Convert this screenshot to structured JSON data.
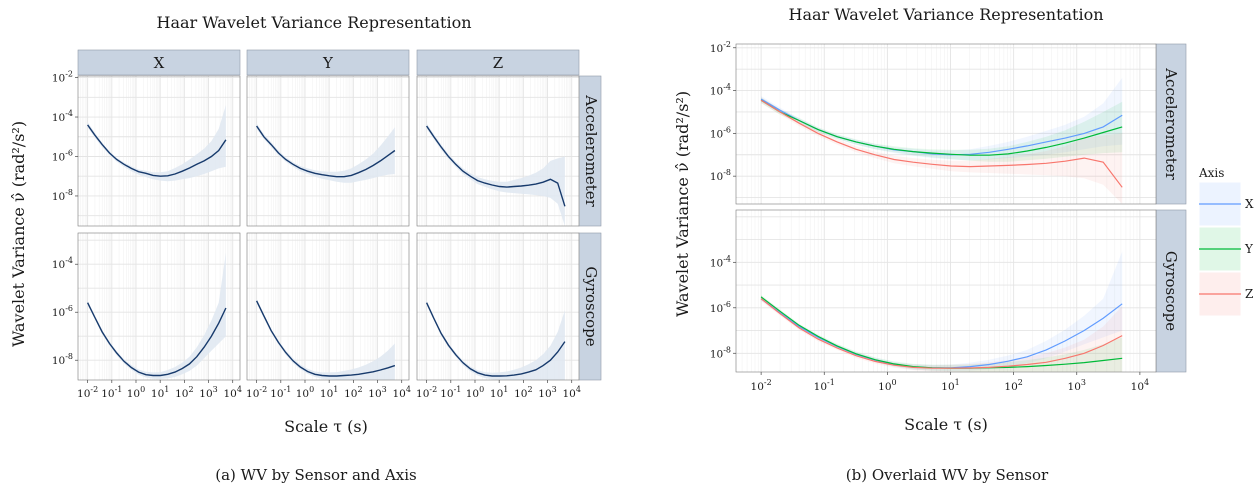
{
  "chart_data": [
    {
      "type": "line",
      "title": "Haar Wavelet Variance Representation",
      "xlabel": "Scale τ (s)",
      "ylabel": "Wavelet Variance ν̂ (rad²/s²)",
      "caption": "(a) WV by Sensor and Axis",
      "x_scale": "log10",
      "y_scale": "log10",
      "xlim": [
        0.004,
        20000
      ],
      "x_tick_exponents": [
        -2,
        -1,
        0,
        1,
        2,
        3,
        4
      ],
      "columns": [
        "X",
        "Y",
        "Z"
      ],
      "rows": [
        "Accelerometer",
        "Gyroscope"
      ],
      "grid": true,
      "scales_tau": [
        0.01,
        0.02,
        0.04,
        0.08,
        0.16,
        0.32,
        0.64,
        1.28,
        2.56,
        5.12,
        10.24,
        20.48,
        40.96,
        81.92,
        163.84,
        327.68,
        655.36,
        1310.72,
        2621.44,
        5242.88
      ],
      "panels": [
        {
          "row": "Accelerometer",
          "ylim": [
            3e-10,
            0.012
          ],
          "y_tick_exponents": [
            -8,
            -6,
            -4,
            -2
          ],
          "series": [
            {
              "axis": "X",
              "values": [
                4e-05,
                1.2e-05,
                4e-06,
                1.5e-06,
                7e-07,
                4e-07,
                2.5e-07,
                1.7e-07,
                1.4e-07,
                1.1e-07,
                1e-07,
                1.05e-07,
                1.3e-07,
                1.8e-07,
                2.6e-07,
                4e-07,
                6e-07,
                1e-06,
                2e-06,
                7e-06
              ],
              "band": [
                [
                  3e-05,
                  5.5e-05
                ],
                [
                  9e-06,
                  1.6e-05
                ],
                [
                  3e-06,
                  5e-06
                ],
                [
                  1.2e-06,
                  1.8e-06
                ],
                [
                  5.5e-07,
                  8.5e-07
                ],
                [
                  3e-07,
                  5e-07
                ],
                [
                  1.8e-07,
                  3.2e-07
                ],
                [
                  1.2e-07,
                  2.2e-07
                ],
                [
                  9e-08,
                  1.9e-07
                ],
                [
                  7e-08,
                  1.6e-07
                ],
                [
                  6e-08,
                  1.6e-07
                ],
                [
                  5.5e-08,
                  1.8e-07
                ],
                [
                  6e-08,
                  2.6e-07
                ],
                [
                  7e-08,
                  4e-07
                ],
                [
                  8e-08,
                  7e-07
                ],
                [
                  1e-07,
                  1.3e-06
                ],
                [
                  1.3e-07,
                  2.5e-06
                ],
                [
                  1.8e-07,
                  6e-06
                ],
                [
                  2.5e-07,
                  2.5e-05
                ],
                [
                  3e-07,
                  0.0004
                ]
              ]
            },
            {
              "axis": "Y",
              "values": [
                3.5e-05,
                1e-05,
                4e-06,
                1.5e-06,
                7e-07,
                4e-07,
                2.5e-07,
                1.8e-07,
                1.4e-07,
                1.2e-07,
                1.05e-07,
                9.5e-08,
                9.5e-08,
                1.1e-07,
                1.5e-07,
                2.2e-07,
                3.5e-07,
                6e-07,
                1.1e-06,
                2e-06
              ],
              "band": [
                [
                  2.6e-05,
                  4.8e-05
                ],
                [
                  7.5e-06,
                  1.35e-05
                ],
                [
                  3e-06,
                  5.3e-06
                ],
                [
                  1.15e-06,
                  1.95e-06
                ],
                [
                  5.5e-07,
                  9e-07
                ],
                [
                  3e-07,
                  5.2e-07
                ],
                [
                  1.8e-07,
                  3.3e-07
                ],
                [
                  1.3e-07,
                  2.5e-07
                ],
                [
                  9.5e-08,
                  2e-07
                ],
                [
                  7.5e-08,
                  1.8e-07
                ],
                [
                  6.3e-08,
                  1.7e-07
                ],
                [
                  5.2e-08,
                  1.7e-07
                ],
                [
                  4.7e-08,
                  1.9e-07
                ],
                [
                  4.7e-08,
                  2.5e-07
                ],
                [
                  5.5e-08,
                  4e-07
                ],
                [
                  6.5e-08,
                  7e-07
                ],
                [
                  8e-08,
                  1.4e-06
                ],
                [
                  1e-07,
                  3.5e-06
                ],
                [
                  1.2e-07,
                  1e-05
                ],
                [
                  1.3e-07,
                  3e-05
                ]
              ]
            },
            {
              "axis": "Z",
              "values": [
                3.5e-05,
                1e-05,
                3e-06,
                1e-06,
                4e-07,
                1.8e-07,
                1e-07,
                6e-08,
                4.5e-08,
                3.6e-08,
                3e-08,
                2.8e-08,
                3e-08,
                3.2e-08,
                3.5e-08,
                4e-08,
                5e-08,
                7e-08,
                4.5e-08,
                3e-09
              ],
              "band": [
                [
                  2.6e-05,
                  4.8e-05
                ],
                [
                  7.5e-06,
                  1.35e-05
                ],
                [
                  2.2e-06,
                  4e-06
                ],
                [
                  7.5e-07,
                  1.3e-06
                ],
                [
                  3e-07,
                  5.4e-07
                ],
                [
                  1.3e-07,
                  2.5e-07
                ],
                [
                  7e-08,
                  1.4e-07
                ],
                [
                  4e-08,
                  9e-08
                ],
                [
                  2.9e-08,
                  7e-08
                ],
                [
                  2.2e-08,
                  5.8e-08
                ],
                [
                  1.7e-08,
                  5.2e-08
                ],
                [
                  1.5e-08,
                  5.2e-08
                ],
                [
                  1.4e-08,
                  6.5e-08
                ],
                [
                  1.3e-08,
                  8e-08
                ],
                [
                  1.2e-08,
                  1.05e-07
                ],
                [
                  1.1e-08,
                  1.5e-07
                ],
                [
                  1e-08,
                  2.5e-07
                ],
                [
                  8e-09,
                  6e-07
                ],
                [
                  4e-09,
                  8e-07
                ],
                [
                  3e-10,
                  1e-06
                ]
              ]
            }
          ]
        },
        {
          "row": "Gyroscope",
          "ylim": [
            1.5e-09,
            0.002
          ],
          "y_tick_exponents": [
            -8,
            -6,
            -4
          ],
          "series": [
            {
              "axis": "X",
              "values": [
                2.5e-06,
                6e-07,
                1.5e-07,
                5e-08,
                2e-08,
                9e-09,
                5e-09,
                3.2e-09,
                2.5e-09,
                2.3e-09,
                2.3e-09,
                2.6e-09,
                3.2e-09,
                4.5e-09,
                7e-09,
                1.4e-08,
                3.5e-08,
                1e-07,
                3.5e-07,
                1.5e-06
              ],
              "band": [
                [
                  2e-06,
                  3e-06
                ],
                [
                  5e-07,
                  7.2e-07
                ],
                [
                  1.2e-07,
                  1.8e-07
                ],
                [
                  4e-08,
                  6e-08
                ],
                [
                  1.6e-08,
                  2.4e-08
                ],
                [
                  7.3e-09,
                  1.1e-08
                ],
                [
                  4e-09,
                  6.3e-09
                ],
                [
                  2.5e-09,
                  4.1e-09
                ],
                [
                  1.9e-09,
                  3.3e-09
                ],
                [
                  1.7e-09,
                  3.1e-09
                ],
                [
                  1.65e-09,
                  3.2e-09
                ],
                [
                  1.75e-09,
                  3.9e-09
                ],
                [
                  2e-09,
                  5.2e-09
                ],
                [
                  2.6e-09,
                  8e-09
                ],
                [
                  3.6e-09,
                  1.4e-08
                ],
                [
                  6e-09,
                  3.5e-08
                ],
                [
                  1.2e-08,
                  1.1e-07
                ],
                [
                  2.5e-08,
                  4.5e-07
                ],
                [
                  5e-08,
                  2.5e-06
                ],
                [
                  1e-07,
                  0.0003
                ]
              ]
            },
            {
              "axis": "Y",
              "values": [
                3e-06,
                7e-07,
                1.7e-07,
                5.5e-08,
                2.1e-08,
                9.5e-09,
                5.2e-09,
                3.4e-09,
                2.6e-09,
                2.3e-09,
                2.2e-09,
                2.2e-09,
                2.3e-09,
                2.4e-09,
                2.6e-09,
                2.9e-09,
                3.3e-09,
                3.9e-09,
                4.8e-09,
                6e-09
              ],
              "band": [
                [
                  2.4e-06,
                  3.6e-06
                ],
                [
                  5.7e-07,
                  8.4e-07
                ],
                [
                  1.4e-07,
                  2e-07
                ],
                [
                  4.5e-08,
                  6.6e-08
                ],
                [
                  1.7e-08,
                  2.6e-08
                ],
                [
                  7.6e-09,
                  1.2e-08
                ],
                [
                  4.2e-09,
                  6.6e-09
                ],
                [
                  2.7e-09,
                  4.4e-09
                ],
                [
                  2e-09,
                  3.4e-09
                ],
                [
                  1.7e-09,
                  3.1e-09
                ],
                [
                  1.6e-09,
                  3.1e-09
                ],
                [
                  1.5e-09,
                  3.2e-09
                ],
                [
                  1.5e-09,
                  3.6e-09
                ],
                [
                  1.5e-09,
                  4.1e-09
                ],
                [
                  1.5e-09,
                  5e-09
                ],
                [
                  1.5e-09,
                  6.5e-09
                ],
                [
                  1.5e-09,
                  9e-09
                ],
                [
                  1.5e-09,
                  1.4e-08
                ],
                [
                  1.5e-09,
                  2.5e-08
                ],
                [
                  1.5e-09,
                  5e-08
                ]
              ]
            },
            {
              "axis": "Z",
              "values": [
                2.5e-06,
                5.5e-07,
                1.3e-07,
                4.2e-08,
                1.7e-08,
                7.8e-09,
                4.4e-09,
                3e-09,
                2.4e-09,
                2.2e-09,
                2.2e-09,
                2.25e-09,
                2.4e-09,
                2.7e-09,
                3.2e-09,
                4e-09,
                6e-09,
                1e-08,
                2.2e-08,
                6e-08
              ],
              "band": [
                [
                  2e-06,
                  3e-06
                ],
                [
                  4.5e-07,
                  6.6e-07
                ],
                [
                  1.05e-07,
                  1.55e-07
                ],
                [
                  3.4e-08,
                  5e-08
                ],
                [
                  1.4e-08,
                  2.1e-08
                ],
                [
                  6.2e-09,
                  9.6e-09
                ],
                [
                  3.5e-09,
                  5.5e-09
                ],
                [
                  2.3e-09,
                  3.8e-09
                ],
                [
                  1.8e-09,
                  3.2e-09
                ],
                [
                  1.6e-09,
                  3e-09
                ],
                [
                  1.55e-09,
                  3.1e-09
                ],
                [
                  1.5e-09,
                  3.4e-09
                ],
                [
                  1.5e-09,
                  4e-09
                ],
                [
                  1.5e-09,
                  5e-09
                ],
                [
                  1.5e-09,
                  6.8e-09
                ],
                [
                  1.5e-09,
                  1e-08
                ],
                [
                  1.5e-09,
                  1.8e-08
                ],
                [
                  1.5e-09,
                  4e-08
                ],
                [
                  1.5e-09,
                  1.5e-07
                ],
                [
                  1.5e-09,
                  1.2e-06
                ]
              ]
            }
          ]
        }
      ],
      "colors": {
        "line": "#173a6c",
        "band": "#dfe7f1",
        "strip": "#c8d3e1"
      }
    },
    {
      "type": "line",
      "title": "Haar Wavelet Variance Representation",
      "xlabel": "Scale τ (s)",
      "ylabel": "Wavelet Variance ν̂ (rad²/s²)",
      "caption": "(b) Overlaid WV by Sensor",
      "x_scale": "log10",
      "y_scale": "log10",
      "xlim": [
        0.004,
        18000
      ],
      "x_tick_exponents": [
        -2,
        -1,
        0,
        1,
        2,
        3,
        4
      ],
      "rows": [
        "Accelerometer",
        "Gyroscope"
      ],
      "legend": {
        "title": "Axis",
        "entries": [
          "X",
          "Y",
          "Z"
        ],
        "position": "right"
      },
      "grid": true,
      "series_colors": {
        "X": "#619cff",
        "Y": "#00ba38",
        "Z": "#f8766d"
      },
      "panels": [
        {
          "row": "Accelerometer",
          "ylim": [
            5e-10,
            0.015
          ],
          "y_tick_exponents": [
            -8,
            -6,
            -4,
            -2
          ]
        },
        {
          "row": "Gyroscope",
          "ylim": [
            1.5e-09,
            0.02
          ],
          "y_tick_exponents": [
            -8,
            -6,
            -4
          ]
        }
      ],
      "shares_series_with": "chart_data[0].panels"
    }
  ]
}
